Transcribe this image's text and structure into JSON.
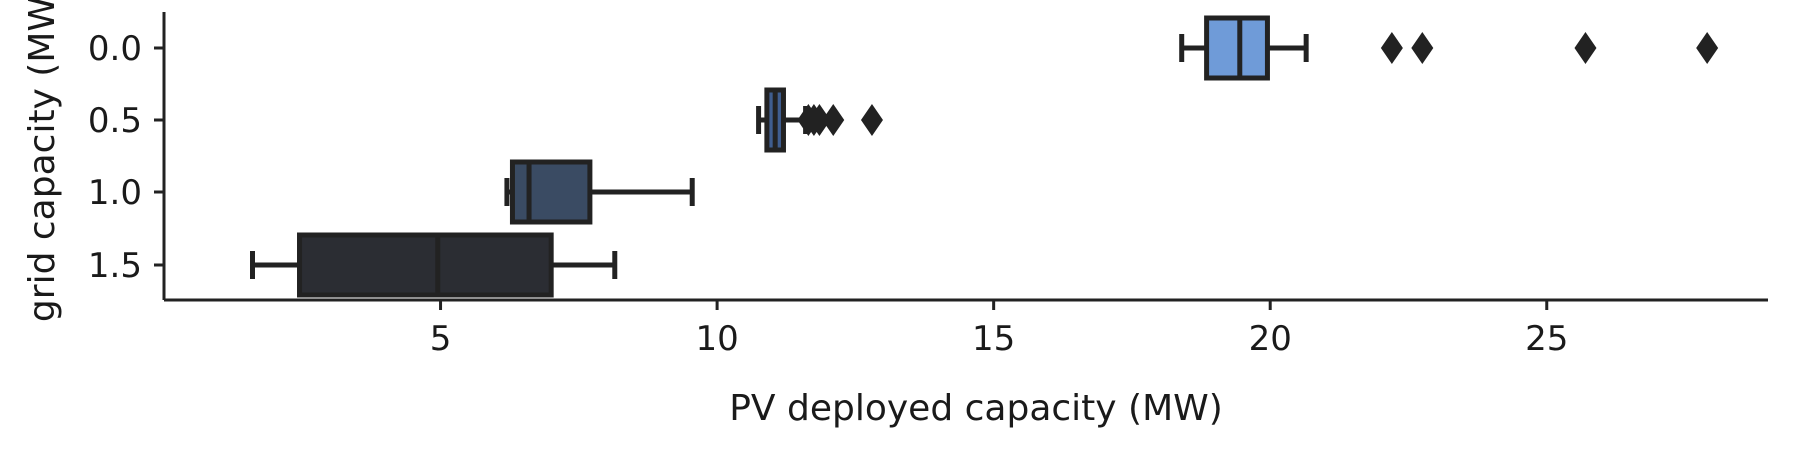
{
  "chart_data": {
    "type": "boxplot",
    "orientation": "horizontal",
    "xlabel": "PV deployed capacity (MW)",
    "ylabel": "grid capacity (MW)",
    "xlim": [
      0,
      29
    ],
    "x_ticks": [
      5,
      10,
      15,
      20,
      25
    ],
    "y_categories": [
      "0.0",
      "0.5",
      "1.0",
      "1.5"
    ],
    "grid": false,
    "series": [
      {
        "category": "0.0",
        "color": "#6f9bd8",
        "whisker_low": 18.4,
        "q1": 18.85,
        "median": 19.45,
        "q3": 19.95,
        "whisker_high": 20.65,
        "outliers": [
          22.2,
          22.75,
          25.7,
          27.9
        ]
      },
      {
        "category": "0.5",
        "color": "#3f5d8f",
        "whisker_low": 10.75,
        "q1": 10.9,
        "median": 11.05,
        "q3": 11.2,
        "whisker_high": 11.6,
        "outliers": [
          11.65,
          11.75,
          11.85,
          12.1,
          12.8
        ]
      },
      {
        "category": "1.0",
        "color": "#3a4b63",
        "whisker_low": 6.2,
        "q1": 6.3,
        "median": 6.6,
        "q3": 7.7,
        "whisker_high": 9.55,
        "outliers": []
      },
      {
        "category": "1.5",
        "color": "#2b2d33",
        "whisker_low": 1.6,
        "q1": 2.45,
        "median": 4.95,
        "q3": 7.0,
        "whisker_high": 8.15,
        "outliers": []
      }
    ]
  }
}
